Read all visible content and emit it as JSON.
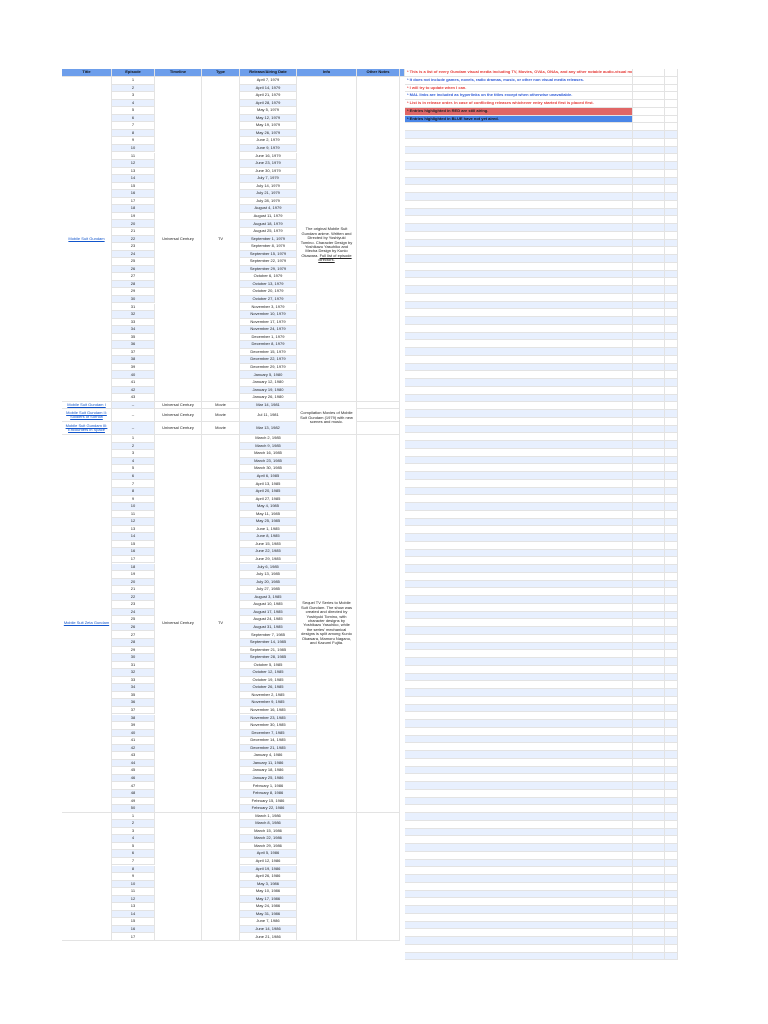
{
  "headers": [
    "Title",
    "Episode",
    "Timeline",
    "Type",
    "Release/Airing Date",
    "Info",
    "Other Notes"
  ],
  "colors": {
    "header": "#6d9eeb",
    "band": "#e8f0fe",
    "link": "#1155cc",
    "red_note": "#e06666",
    "blue_note": "#4a86e8"
  },
  "notes": [
    {
      "text": "* This is a list of every Gundam visual media including TV, Movies, OVAs, ONAs, and any other notable audio-visual media.",
      "style": "red-t"
    },
    {
      "text": "* It does not include games, novels, radio dramas, music, or other non visual media releases.",
      "style": "blue-t"
    },
    {
      "text": "* I will try to update when I can.",
      "style": "red-t"
    },
    {
      "text": "* MAL links are included as hyperlinks on the titles except when otherwise unavailable.",
      "style": "blue-t"
    },
    {
      "text": "* List is in release order. In case of conflicting releases whichever entry started first is placed first.",
      "style": "red-t"
    },
    {
      "text": "* Entries highlighted in RED are still airing.",
      "style": "red-bg"
    },
    {
      "text": "* Entries highlighted in BLUE have not yet aired.",
      "style": "blue-bg"
    }
  ],
  "gundam": {
    "title": "Mobile Suit Gundam",
    "timeline": "Universal Century",
    "type": "TV",
    "info": "The original Mobile Suit Gundam anime. Written and Directed by Yoshiyuki Tomino. Character Design by Yoshikazu Yasuhiko and Mecha Design by Kunio Okawara.",
    "info_link": "Full list of episode directors.",
    "dates": [
      "April 7, 1979",
      "April 14, 1979",
      "April 21, 1979",
      "April 28, 1979",
      "May 5, 1979",
      "May 12, 1979",
      "May 19, 1979",
      "May 26, 1979",
      "June 2, 1979",
      "June 9, 1979",
      "June 16, 1979",
      "June 23, 1979",
      "June 30, 1979",
      "July 7, 1979",
      "July 14, 1979",
      "July 21, 1979",
      "July 28, 1979",
      "August 4, 1979",
      "August 11, 1979",
      "August 18, 1979",
      "August 25, 1979",
      "September 1, 1979",
      "September 8, 1979",
      "September 15, 1979",
      "September 22, 1979",
      "September 29, 1979",
      "October 6, 1979",
      "October 13, 1979",
      "October 20, 1979",
      "October 27, 1979",
      "November 3, 1979",
      "November 10, 1979",
      "November 17, 1979",
      "November 24, 1979",
      "December 1, 1979",
      "December 8, 1979",
      "December 15, 1979",
      "December 22, 1979",
      "December 29, 1979",
      "January 5, 1980",
      "January 12, 1980",
      "January 19, 1980",
      "January 26, 1980"
    ]
  },
  "movies": {
    "info": "Compilation Movies of Mobile Suit Gundam (1979) with new scenes and music.",
    "entries": [
      {
        "title": "Mobile Suit Gundam I",
        "ep": "–",
        "timeline": "Universal Century",
        "type": "Movie",
        "date": "Mar 14, 1981"
      },
      {
        "title": "Mobile Suit Gundam II: Soldiers of Sorrow",
        "ep": "–",
        "timeline": "Universal Century",
        "type": "Movie",
        "date": "Jul 11, 1981"
      },
      {
        "title": "Mobile Suit Gundam III: Encounters in Space",
        "ep": "–",
        "timeline": "Universal Century",
        "type": "Movie",
        "date": "Mar 13, 1982"
      }
    ]
  },
  "zeta": {
    "title": "Mobile Suit Zeta Gundam",
    "timeline": "Universal Century",
    "type": "TV",
    "info": "Sequel TV Series to Mobile Suit Gundam. The show was created and directed by Yoshiyuki Tomino, with character designs by Yoshikazu Yasuhiko, while the series' mechanical designs is split among Kunio Okawara, Mamoru Nagano, and Kazumi Fujita.",
    "dates": [
      "March 2, 1985",
      "March 9, 1985",
      "March 16, 1985",
      "March 23, 1985",
      "March 30, 1985",
      "April 6, 1985",
      "April 13, 1985",
      "April 20, 1985",
      "April 27, 1985",
      "May 4, 1985",
      "May 11, 1985",
      "May 25, 1985",
      "June 1, 1985",
      "June 8, 1985",
      "June 15, 1985",
      "June 22, 1985",
      "June 29, 1985",
      "July 6, 1985",
      "July 13, 1985",
      "July 20, 1985",
      "July 27, 1985",
      "August 3, 1985",
      "August 10, 1985",
      "August 17, 1985",
      "August 24, 1985",
      "August 31, 1985",
      "September 7, 1985",
      "September 14, 1985",
      "September 21, 1985",
      "September 28, 1985",
      "October 5, 1985",
      "October 12, 1985",
      "October 19, 1985",
      "October 26, 1985",
      "November 2, 1985",
      "November 9, 1985",
      "November 16, 1985",
      "November 23, 1985",
      "November 30, 1985",
      "December 7, 1985",
      "December 14, 1985",
      "December 21, 1985",
      "January 4, 1986",
      "January 11, 1986",
      "January 18, 1986",
      "January 25, 1986",
      "February 1, 1986",
      "February 8, 1986",
      "February 15, 1986",
      "February 22, 1986"
    ]
  },
  "zz": {
    "dates": [
      "March 1, 1986",
      "March 8, 1986",
      "March 15, 1986",
      "March 22, 1986",
      "March 29, 1986",
      "April 5, 1986",
      "April 12, 1986",
      "April 19, 1986",
      "April 26, 1986",
      "May 3, 1986",
      "May 10, 1986",
      "May 17, 1986",
      "May 24, 1986",
      "May 31, 1986",
      "June 7, 1986",
      "June 14, 1986",
      "June 21, 1986"
    ]
  }
}
